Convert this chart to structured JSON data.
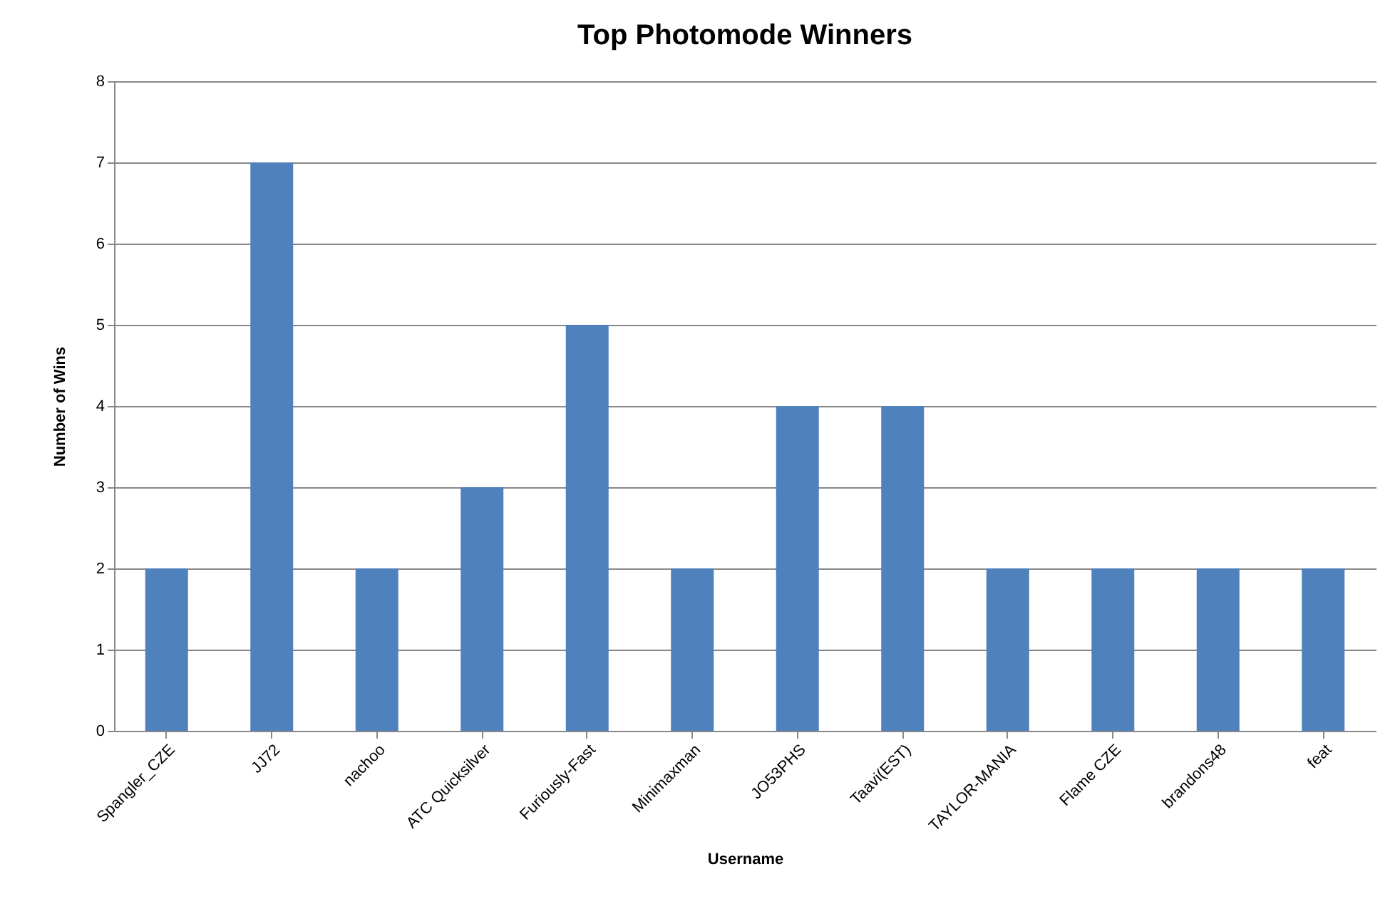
{
  "chart_data": {
    "type": "bar",
    "title": "Top Photomode Winners",
    "xlabel": "Username",
    "ylabel": "Number of Wins",
    "categories": [
      "Spangler_CZE",
      "JJ72",
      "nachoo",
      "ATC Quicksilver",
      "Furiously-Fast",
      "Minimaxman",
      "JO53PHS",
      "Taavi(EST)",
      "TAYLOR-MANIA",
      "Flame CZE",
      "brandons48",
      "feat"
    ],
    "values": [
      2,
      7,
      2,
      3,
      5,
      2,
      4,
      4,
      2,
      2,
      2,
      2
    ],
    "color": "#4f81bd",
    "ylim": [
      0,
      8
    ],
    "yticks": [
      0,
      1,
      2,
      3,
      4,
      5,
      6,
      7,
      8
    ],
    "grid": "y"
  }
}
